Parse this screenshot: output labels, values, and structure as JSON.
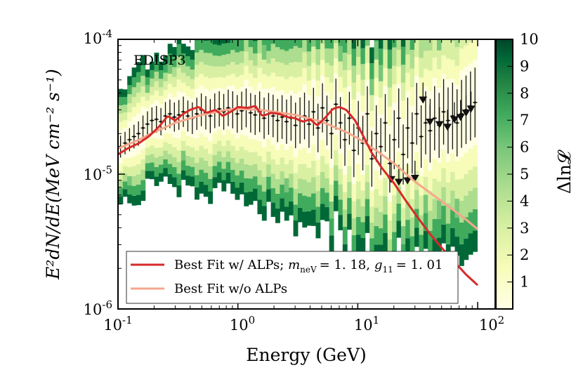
{
  "chart_data": {
    "type": "scatter",
    "title": "",
    "panel_label": "EDISP3",
    "xlabel": "Energy (GeV)",
    "ylabel": "E²dN/dE(MeV cm⁻² s⁻¹)",
    "xscale": "log",
    "yscale": "log",
    "xlim": [
      0.1,
      140
    ],
    "ylim": [
      1e-06,
      0.0001
    ],
    "x_ticks": [
      {
        "value": 0.1,
        "base": "10",
        "exp": "-1"
      },
      {
        "value": 1,
        "base": "10",
        "exp": "0"
      },
      {
        "value": 10,
        "base": "10",
        "exp": "1"
      },
      {
        "value": 100,
        "base": "10",
        "exp": "2"
      }
    ],
    "y_ticks": [
      {
        "value": 1e-06,
        "label": "10-6"
      },
      {
        "value": 1e-05,
        "label": "10-5"
      },
      {
        "value": 0.0001,
        "label": "10-4"
      }
    ],
    "colorbar": {
      "label": "Δln𝓛",
      "min": 0,
      "max": 10,
      "ticks": [
        "1",
        "2",
        "3",
        "4",
        "5",
        "6",
        "7",
        "8",
        "9",
        "10"
      ],
      "cmap_colors": [
        "#ffffe5",
        "#f7fcb9",
        "#d9f0a3",
        "#addd8e",
        "#78c679",
        "#41ab5d",
        "#238443",
        "#006837",
        "#004529"
      ]
    },
    "series": [
      {
        "name": "Best Fit w/ ALPs",
        "label_prefix": "Best Fit w/ ALPs; ",
        "label_math": "m_neV = 1.18, g_11 = 1.01",
        "m_label": "m",
        "m_sub": "neV",
        "m_value": "= 1. 18,",
        "g_label": "g",
        "g_sub": "11",
        "g_value": "= 1. 01",
        "color": "#d62a2a",
        "x": [
          0.1,
          0.12,
          0.15,
          0.18,
          0.22,
          0.26,
          0.3,
          0.35,
          0.4,
          0.47,
          0.55,
          0.65,
          0.75,
          0.9,
          1.0,
          1.2,
          1.4,
          1.6,
          1.9,
          2.2,
          2.6,
          3.0,
          3.5,
          4.0,
          4.6,
          5.3,
          6.2,
          7.0,
          8.0,
          9.5,
          11.0,
          13.0,
          16.0,
          20.0,
          25.0,
          32.0,
          40.0,
          50.0,
          65.0,
          80.0,
          100.0
        ],
        "y": [
          1.4e-05,
          1.55e-05,
          1.7e-05,
          1.9e-05,
          2.25e-05,
          2.7e-05,
          2.5e-05,
          2.8e-05,
          3e-05,
          3.15e-05,
          2.85e-05,
          3e-05,
          2.7e-05,
          2.95e-05,
          3.15e-05,
          3.1e-05,
          3.2e-05,
          2.7e-05,
          2.85e-05,
          2.8e-05,
          2.65e-05,
          2.6e-05,
          2.45e-05,
          2.55e-05,
          2.3e-05,
          2.6e-05,
          3.05e-05,
          3.15e-05,
          3e-05,
          2.5e-05,
          1.95e-05,
          1.45e-05,
          1.1e-05,
          8.6e-06,
          6.4e-06,
          4.7e-06,
          3.6e-06,
          2.85e-06,
          2.2e-06,
          1.8e-06,
          1.5e-06
        ]
      },
      {
        "name": "Best Fit w/o ALPs",
        "color": "#f5a78d",
        "x": [
          0.1,
          0.15,
          0.2,
          0.3,
          0.5,
          0.8,
          1.0,
          1.5,
          2.0,
          3.0,
          5.0,
          8.0,
          10.0,
          15.0,
          20.0,
          30.0,
          50.0,
          80.0,
          100.0
        ],
        "y": [
          1.55e-05,
          1.8e-05,
          2.05e-05,
          2.4e-05,
          2.75e-05,
          3e-05,
          3.05e-05,
          3e-05,
          2.9e-05,
          2.75e-05,
          2.45e-05,
          2.05e-05,
          1.85e-05,
          1.45e-05,
          1.2e-05,
          8.8e-06,
          6.3e-06,
          4.6e-06,
          3.9e-06
        ]
      }
    ],
    "data_points": {
      "n_bins": 80,
      "x_range": [
        0.105,
        95
      ],
      "y_approx": [
        1.6e-05,
        1.7e-05,
        1.8e-05,
        1.9e-05,
        2e-05,
        2.2e-05,
        2.35e-05,
        2.5e-05,
        2.55e-05,
        2.45e-05,
        2.7e-05,
        2.8e-05,
        2.65e-05,
        2.75e-05,
        2.9e-05,
        2.7e-05,
        2.6e-05,
        2.8e-05,
        3e-05,
        2.85e-05,
        2.7e-05,
        2.95e-05,
        3.05e-05,
        2.9e-05,
        3.1e-05,
        3e-05,
        2.8e-05,
        2.95e-05,
        3.1e-05,
        2.85e-05,
        2.75e-05,
        2.9e-05,
        2.6e-05,
        2.8e-05,
        2.7e-05,
        2.5e-05,
        2.65e-05,
        2.45e-05,
        2.6e-05,
        2.3e-05,
        2.5e-05,
        2.7e-05,
        2.35e-05,
        2.9e-05,
        2.2e-05,
        3.1e-05,
        2.5e-05,
        2e-05,
        3.3e-05,
        2.4e-05,
        1.8e-05,
        2.6e-05,
        1.5e-05,
        2.2e-05,
        1.7e-05,
        2.8e-05,
        1.3e-05,
        2e-05,
        1.6e-05,
        2.4e-05,
        1.2e-05,
        1.8e-05,
        2.6e-05,
        1.4e-05,
        2.2e-05,
        1.7e-05,
        2.8e-05,
        1.9e-05,
        2.4e-05,
        2.1e-05,
        2.6e-05,
        2.3e-05,
        2.9e-05,
        2.5e-05,
        2.7e-05,
        2.4e-05,
        2.8e-05,
        3e-05,
        3.2e-05,
        3.4e-05
      ]
    },
    "upper_limits": {
      "x": [
        19,
        22,
        26,
        30,
        35,
        40,
        48,
        56,
        64,
        72,
        80,
        88
      ],
      "y": [
        9e-06,
        8.6e-06,
        8.8e-06,
        9.2e-06,
        3.5e-05,
        2.4e-05,
        2.3e-05,
        2.2e-05,
        2.5e-05,
        2.6e-05,
        2.8e-05,
        3e-05
      ]
    },
    "legend": {
      "position": "lower-left",
      "entries": [
        "Best Fit w/ ALPs; m_neV = 1.18, g_11 = 1.01",
        "Best Fit w/o ALPs"
      ]
    }
  }
}
